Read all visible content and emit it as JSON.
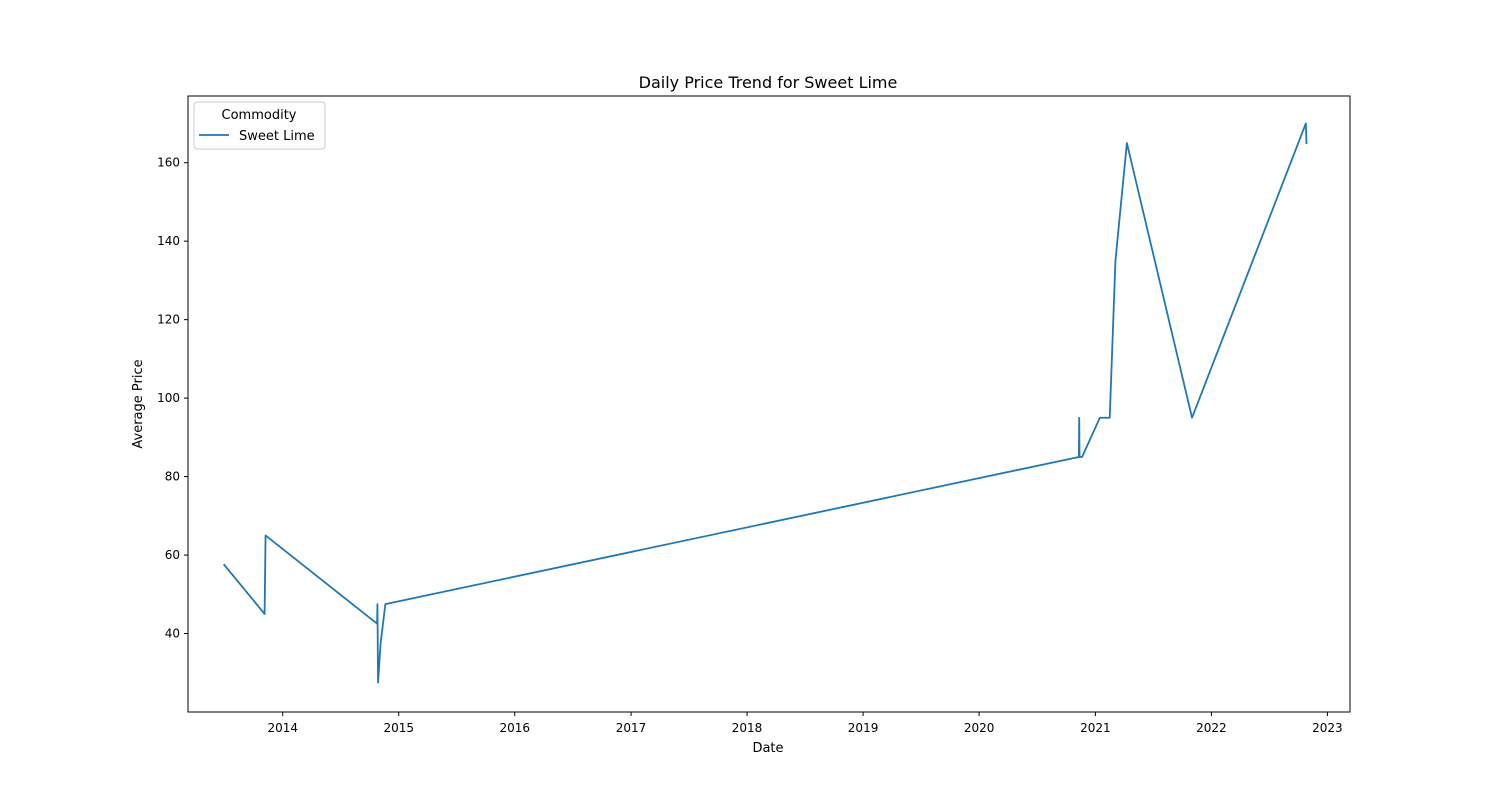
{
  "chart_data": {
    "type": "line",
    "title": "Daily Price Trend for Sweet Lime",
    "xlabel": "Date",
    "ylabel": "Average Price",
    "x_ticks": [
      "2014",
      "2015",
      "2016",
      "2017",
      "2018",
      "2019",
      "2020",
      "2021",
      "2022",
      "2023"
    ],
    "y_ticks": [
      40,
      60,
      80,
      100,
      120,
      140,
      160
    ],
    "xlim": [
      "2013-03-09",
      "2023-03-13"
    ],
    "ylim": [
      20,
      177
    ],
    "grid": false,
    "legend": {
      "title": "Commodity",
      "placement": "top-left"
    },
    "series": [
      {
        "name": "Sweet Lime",
        "color": "#1f77b4",
        "points": [
          {
            "x": "2013-07-01",
            "y": 57.5
          },
          {
            "x": "2013-11-05",
            "y": 45
          },
          {
            "x": "2013-11-08",
            "y": 65
          },
          {
            "x": "2014-10-25",
            "y": 42.5
          },
          {
            "x": "2014-10-26",
            "y": 47.5
          },
          {
            "x": "2014-10-28",
            "y": 27.5
          },
          {
            "x": "2014-11-05",
            "y": 37.5
          },
          {
            "x": "2014-11-20",
            "y": 47.5
          },
          {
            "x": "2020-11-10",
            "y": 85
          },
          {
            "x": "2020-11-11",
            "y": 95
          },
          {
            "x": "2020-11-12",
            "y": 85
          },
          {
            "x": "2020-11-20",
            "y": 85
          },
          {
            "x": "2021-01-15",
            "y": 95
          },
          {
            "x": "2021-02-15",
            "y": 95
          },
          {
            "x": "2021-03-05",
            "y": 135
          },
          {
            "x": "2021-04-10",
            "y": 165
          },
          {
            "x": "2021-11-01",
            "y": 95
          },
          {
            "x": "2022-10-25",
            "y": 170
          },
          {
            "x": "2022-10-27",
            "y": 165
          }
        ]
      }
    ]
  }
}
